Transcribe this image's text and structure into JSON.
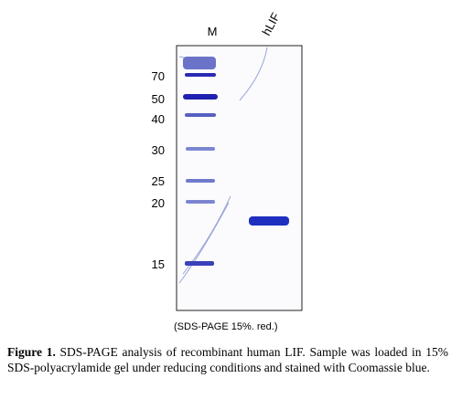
{
  "figure": {
    "lanes": [
      "M",
      "hLIF"
    ],
    "markers": [
      "70",
      "50",
      "40",
      "30",
      "25",
      "20",
      "15"
    ],
    "gel_note": "(SDS-PAGE 15%. red.)",
    "caption": {
      "label": "Figure 1.",
      "text": "SDS-PAGE analysis of recombinant human LIF. Sample was loaded in 15% SDS-polyacrylamide gel under reducing conditions and stained with Coomassie blue."
    }
  }
}
